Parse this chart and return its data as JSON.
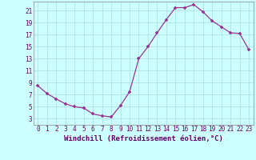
{
  "x": [
    0,
    1,
    2,
    3,
    4,
    5,
    6,
    7,
    8,
    9,
    10,
    11,
    12,
    13,
    14,
    15,
    16,
    17,
    18,
    19,
    20,
    21,
    22,
    23
  ],
  "y": [
    8.5,
    7.2,
    6.3,
    5.5,
    5.0,
    4.8,
    3.8,
    3.5,
    3.3,
    5.2,
    7.5,
    13.0,
    15.0,
    17.3,
    19.5,
    21.5,
    21.5,
    22.0,
    20.8,
    19.3,
    18.3,
    17.3,
    17.2,
    14.5
  ],
  "line_color": "#993399",
  "marker_color": "#993399",
  "bg_color": "#ccffff",
  "grid_color": "#aadddd",
  "xlabel": "Windchill (Refroidissement éolien,°C)",
  "ylabel": "",
  "xlim": [
    -0.5,
    23.5
  ],
  "ylim": [
    2,
    22.5
  ],
  "yticks": [
    3,
    5,
    7,
    9,
    11,
    13,
    15,
    17,
    19,
    21
  ],
  "xticks": [
    0,
    1,
    2,
    3,
    4,
    5,
    6,
    7,
    8,
    9,
    10,
    11,
    12,
    13,
    14,
    15,
    16,
    17,
    18,
    19,
    20,
    21,
    22,
    23
  ],
  "tick_fontsize": 5.5,
  "xlabel_fontsize": 6.5
}
